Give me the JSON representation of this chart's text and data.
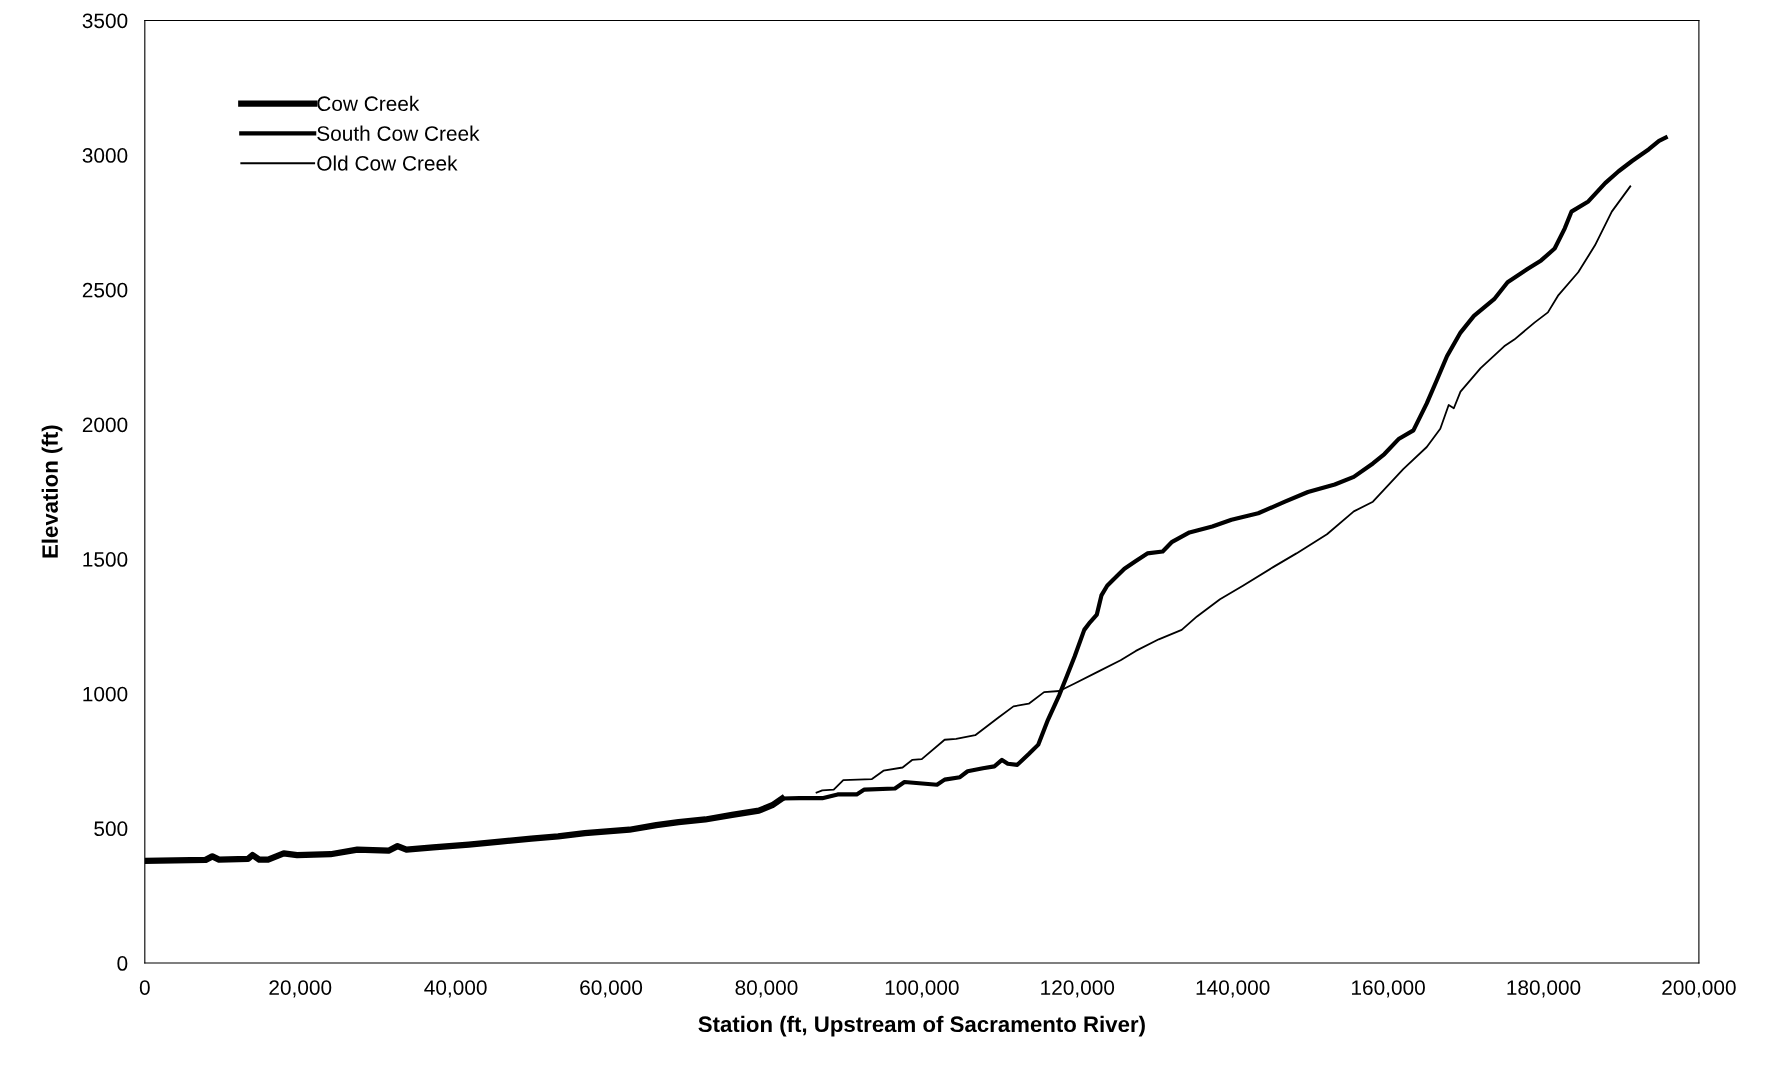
{
  "chart_data": {
    "type": "line",
    "xlabel": "Station (ft, Upstream of Sacramento River)",
    "ylabel": "Elevation (ft)",
    "xlim": [
      0,
      200000
    ],
    "ylim": [
      0,
      3500
    ],
    "xticks": [
      0,
      {
        "value": 20000,
        "label": "20,000"
      },
      {
        "value": 40000,
        "label": "40,000"
      },
      {
        "value": 60000,
        "label": "60,000"
      },
      {
        "value": 80000,
        "label": "80,000"
      },
      {
        "value": 100000,
        "label": "100,000"
      },
      {
        "value": 120000,
        "label": "120,000"
      },
      {
        "value": 140000,
        "label": "140,000"
      },
      {
        "value": 160000,
        "label": "160,000"
      },
      {
        "value": 180000,
        "label": "180,000"
      },
      {
        "value": 200000,
        "label": "200,000"
      }
    ],
    "yticks": [
      0,
      500,
      1000,
      1500,
      2000,
      2500,
      3000,
      3500
    ],
    "grid": false,
    "legend": "top left",
    "marker": "none",
    "line_style": "solid",
    "series": [
      {
        "name": "Cow Creek",
        "color": "#000000",
        "x": [
          0,
          7830,
          8690,
          9550,
          13280,
          13860,
          14720,
          15870,
          17880,
          19600,
          23900,
          27350,
          31370,
          32520,
          33670,
          37110,
          41700,
          45720,
          49740,
          53190,
          56630,
          62370,
          65820,
          68690,
          72130,
          75580,
          79020,
          80750,
          82010
        ],
        "values": [
          379,
          383,
          396,
          384,
          387,
          401,
          384,
          384,
          407,
          401,
          404,
          421,
          417,
          434,
          421,
          429,
          440,
          451,
          462,
          470,
          482,
          495,
          512,
          523,
          533,
          550,
          566,
          586,
          611
        ]
      },
      {
        "name": "South Cow Creek",
        "color": "#000000",
        "x": [
          82010,
          84230,
          87190,
          89160,
          91610,
          92600,
          96540,
          97760,
          101950,
          102930,
          104900,
          105890,
          107860,
          109330,
          110310,
          111060,
          112280,
          113760,
          114990,
          116230,
          117700,
          118680,
          119660,
          120900,
          121640,
          122520,
          123110,
          123850,
          125080,
          126070,
          127540,
          129020,
          130990,
          132210,
          134440,
          137380,
          139850,
          143290,
          146730,
          149690,
          153140,
          155590,
          158050,
          159530,
          161410,
          163260,
          164980,
          166280,
          167580,
          169320,
          171050,
          173650,
          175380,
          177990,
          179700,
          181440,
          182740,
          183600,
          185770,
          187940,
          189670,
          191400,
          193570,
          194870,
          195730
        ],
        "values": [
          611,
          612,
          612,
          626,
          626,
          644,
          648,
          672,
          662,
          681,
          690,
          712,
          723,
          730,
          754,
          740,
          736,
          776,
          811,
          903,
          996,
          1067,
          1138,
          1237,
          1265,
          1294,
          1365,
          1401,
          1436,
          1464,
          1493,
          1521,
          1528,
          1564,
          1599,
          1621,
          1646,
          1670,
          1713,
          1749,
          1777,
          1805,
          1855,
          1890,
          1947,
          1978,
          2078,
          2165,
          2253,
          2341,
          2403,
          2465,
          2528,
          2578,
          2609,
          2653,
          2728,
          2790,
          2828,
          2896,
          2940,
          2978,
          3022,
          3053,
          3065
        ]
      },
      {
        "name": "Old Cow Creek",
        "color": "#000000",
        "x": [
          86450,
          87190,
          88660,
          89890,
          93580,
          95060,
          97520,
          98750,
          99990,
          102930,
          104410,
          106870,
          109820,
          111790,
          113760,
          115730,
          117700,
          119660,
          122620,
          125580,
          127540,
          130490,
          133440,
          135410,
          138370,
          141320,
          145260,
          148210,
          152140,
          155590,
          158050,
          161950,
          164980,
          166720,
          167800,
          168460,
          169320,
          171910,
          174940,
          176240,
          178840,
          180570,
          181870,
          184470,
          186630,
          188790,
          191170
        ],
        "values": [
          633,
          641,
          644,
          679,
          683,
          714,
          726,
          754,
          757,
          829,
          832,
          846,
          911,
          953,
          963,
          1006,
          1010,
          1038,
          1081,
          1124,
          1159,
          1202,
          1237,
          1287,
          1351,
          1401,
          1471,
          1521,
          1592,
          1677,
          1713,
          1834,
          1916,
          1984,
          2072,
          2060,
          2122,
          2209,
          2290,
          2315,
          2378,
          2416,
          2478,
          2565,
          2665,
          2790,
          2884
        ]
      }
    ]
  }
}
